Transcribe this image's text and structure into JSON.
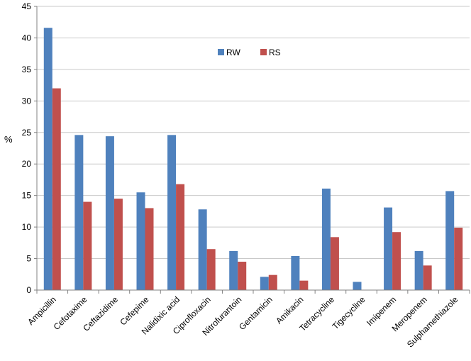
{
  "chart_data": {
    "type": "bar",
    "title": "",
    "xlabel": "",
    "ylabel": "%",
    "ylim": [
      0,
      45
    ],
    "yticks": [
      0,
      5,
      10,
      15,
      20,
      25,
      30,
      35,
      40,
      45
    ],
    "grid": true,
    "legend_position": "top-center",
    "categories": [
      "Ampicillin",
      "Cefotaxime",
      "Ceftazidime",
      "Cefepime",
      "Nalidixic acid",
      "Ciprofloxacin",
      "Nitrofurantoin",
      "Gentamicin",
      "Amikacin",
      "Tetracycline",
      "Tigecycline",
      "Imipenem",
      "Meropenem",
      "Sulphamethiazole"
    ],
    "series": [
      {
        "name": "RW",
        "color": "#4f81bd",
        "values": [
          41.6,
          24.6,
          24.4,
          15.5,
          24.6,
          12.8,
          6.2,
          2.1,
          5.4,
          16.1,
          1.3,
          13.1,
          6.2,
          15.7
        ]
      },
      {
        "name": "RS",
        "color": "#c0504d",
        "values": [
          32.0,
          14.0,
          14.5,
          13.0,
          16.8,
          6.5,
          4.5,
          2.4,
          1.5,
          8.4,
          0.0,
          9.2,
          3.9,
          9.9
        ]
      }
    ]
  }
}
